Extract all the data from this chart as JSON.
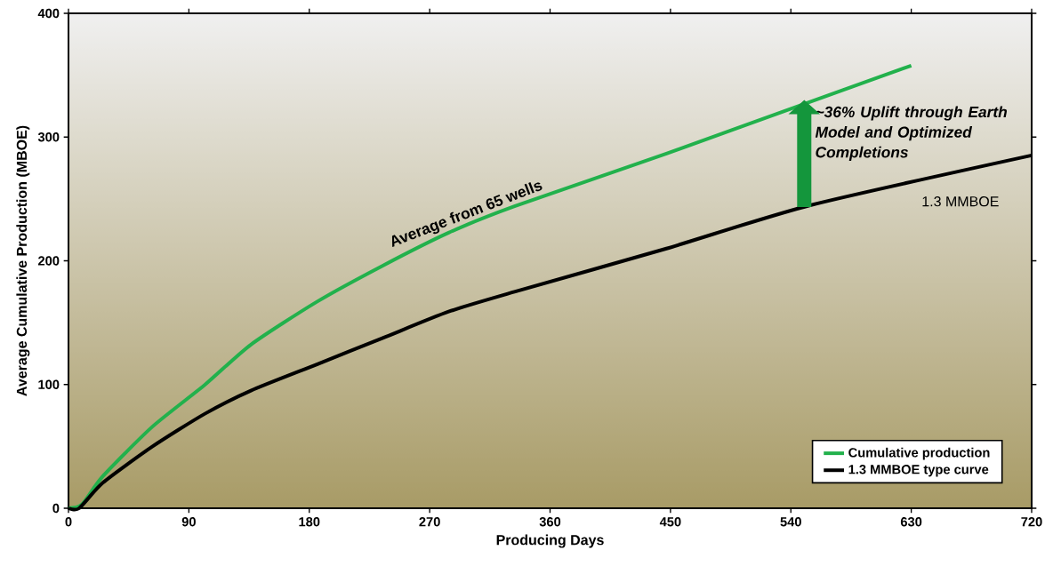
{
  "chart_data": {
    "type": "line",
    "xlabel": "Producing Days",
    "ylabel": "Average Cumulative Production (MBOE)",
    "xlim": [
      0,
      720
    ],
    "ylim": [
      0,
      400
    ],
    "xticks": [
      0,
      90,
      180,
      270,
      360,
      450,
      540,
      630,
      720
    ],
    "yticks": [
      0,
      100,
      200,
      300,
      400
    ],
    "grid": false,
    "legend": "bottom right",
    "marker": "none",
    "line_style": "solid",
    "series": [
      {
        "name": "Cumulative production",
        "color": "#22b14c",
        "x": [
          0,
          10,
          25.7,
          62.6,
          102,
          136.4,
          185.7,
          235,
          284.2,
          333.4,
          447,
          547,
          630
        ],
        "values": [
          0,
          3,
          25.9,
          65.8,
          99.8,
          132.3,
          166.9,
          196.1,
          222.7,
          244,
          286.6,
          325.6,
          357.8
        ]
      },
      {
        "name": "1.3 MMBOE type curve",
        "color": "#000000",
        "x": [
          0,
          8,
          25.7,
          62.6,
          102,
          136.4,
          185.7,
          235,
          284.2,
          333.4,
          447,
          554.5,
          720
        ],
        "values": [
          0,
          0,
          20.6,
          49.8,
          76.4,
          95.1,
          116.3,
          137.6,
          158.9,
          174.9,
          209.9,
          244.9,
          285.2
        ]
      }
    ],
    "annotations": [
      {
        "text": "Average from 65 wells",
        "x": 300,
        "y": 230
      },
      {
        "text": "~36% Uplift through Earth Model and Optimized Completions",
        "x": 550,
        "y": 330
      },
      "1.3 MMBOE"
    ]
  }
}
